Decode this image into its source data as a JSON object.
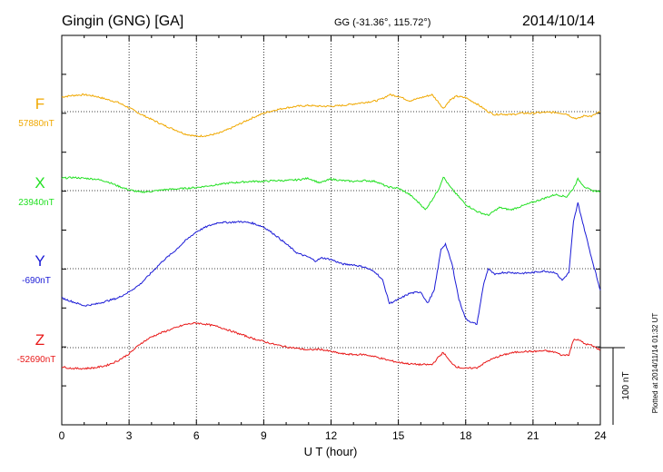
{
  "header": {
    "station": "Gingin (GNG)  [GA]",
    "coords": "GG (-31.36°, 115.72°)",
    "date": "2014/10/14"
  },
  "side_note": "Plotted at 2014/11/14 01:32 UT",
  "scale_label": "100 nT",
  "chart_data": {
    "type": "line",
    "title": "Gingin (GNG)  [GA]",
    "xlabel": "U T (hour)",
    "ylabel": "",
    "xlim": [
      0,
      24
    ],
    "xticks": [
      0,
      3,
      6,
      9,
      12,
      15,
      18,
      21,
      24
    ],
    "grid": true,
    "scale_nT": 100,
    "series": [
      {
        "name": "F",
        "baseline_label": "57880nT",
        "color": "#f0a800",
        "x": [
          0,
          0.5,
          1,
          1.5,
          2,
          2.5,
          3,
          3.5,
          4,
          4.5,
          5,
          5.5,
          6,
          6.5,
          7,
          7.5,
          8,
          8.5,
          9,
          9.5,
          10,
          10.5,
          11,
          11.5,
          12,
          12.5,
          13,
          13.5,
          14,
          14.3,
          14.6,
          15,
          15.5,
          16,
          16.5,
          16.8,
          17,
          17.3,
          17.6,
          18,
          18.5,
          19,
          19.3,
          19.6,
          20,
          20.5,
          21,
          21.5,
          22,
          22.5,
          22.8,
          23,
          23.3,
          23.6,
          24
        ],
        "y": [
          19,
          21,
          22,
          20,
          16,
          12,
          5,
          -3,
          -10,
          -17,
          -23,
          -29,
          -32,
          -31,
          -28,
          -22,
          -15,
          -8,
          -2,
          2,
          5,
          7,
          8,
          7,
          7,
          8,
          10,
          12,
          14,
          17,
          22,
          20,
          14,
          18,
          22,
          12,
          4,
          15,
          20,
          18,
          10,
          0,
          -4,
          -3,
          -4,
          -2,
          -2,
          -1,
          -1,
          -3,
          -8,
          -9,
          -5,
          -6,
          0
        ]
      },
      {
        "name": "X",
        "baseline_label": "23940nT",
        "color": "#22e022",
        "x": [
          0,
          0.5,
          1,
          1.5,
          2,
          2.5,
          3,
          3.5,
          4,
          4.5,
          5,
          5.5,
          6,
          6.5,
          7,
          7.5,
          8,
          8.5,
          9,
          9.5,
          10,
          10.5,
          11,
          11.5,
          12,
          12.5,
          13,
          13.5,
          14,
          14.5,
          15,
          15.5,
          16,
          16.2,
          16.5,
          16.8,
          17,
          17.3,
          17.6,
          18,
          18.5,
          19,
          19.5,
          20,
          20.5,
          21,
          21.5,
          22,
          22.5,
          22.8,
          23,
          23.3,
          23.6,
          24
        ],
        "y": [
          16,
          17,
          16,
          15,
          12,
          6,
          1,
          -2,
          -1,
          1,
          2,
          3,
          4,
          6,
          8,
          10,
          11,
          12,
          12,
          13,
          13,
          14,
          16,
          10,
          15,
          13,
          12,
          13,
          12,
          5,
          3,
          -5,
          -18,
          -25,
          -12,
          2,
          18,
          5,
          -5,
          -18,
          -27,
          -32,
          -22,
          -25,
          -20,
          -15,
          -10,
          -5,
          -8,
          3,
          15,
          5,
          0,
          -1
        ]
      },
      {
        "name": "Y",
        "baseline_label": "-690nT",
        "color": "#1a1ad6",
        "x": [
          0,
          0.5,
          1,
          1.5,
          2,
          2.5,
          3,
          3.5,
          4,
          4.5,
          5,
          5.5,
          6,
          6.5,
          7,
          7.5,
          8,
          8.5,
          9,
          9.5,
          10,
          10.5,
          11,
          11.3,
          11.6,
          12,
          12.5,
          13,
          13.5,
          14,
          14.3,
          14.6,
          15,
          15.5,
          16,
          16.3,
          16.6,
          16.9,
          17.1,
          17.4,
          17.7,
          18,
          18.3,
          18.5,
          18.8,
          19,
          19.3,
          19.6,
          20,
          20.5,
          21,
          21.5,
          22,
          22.3,
          22.6,
          22.8,
          23,
          23.3,
          23.6,
          24
        ],
        "y": [
          -38,
          -43,
          -48,
          -46,
          -42,
          -38,
          -30,
          -20,
          -5,
          10,
          22,
          36,
          48,
          55,
          60,
          60,
          61,
          59,
          54,
          44,
          32,
          20,
          15,
          10,
          14,
          12,
          6,
          5,
          2,
          -5,
          -15,
          -45,
          -40,
          -32,
          -30,
          -45,
          -28,
          25,
          32,
          5,
          -40,
          -65,
          -70,
          -72,
          -20,
          0,
          -8,
          -5,
          -5,
          -6,
          -5,
          -3,
          -5,
          -15,
          -5,
          60,
          85,
          50,
          15,
          -28
        ]
      },
      {
        "name": "Z",
        "baseline_label": "-52690nT",
        "color": "#e81818",
        "x": [
          0,
          0.5,
          1,
          1.5,
          2,
          2.5,
          3,
          3.5,
          4,
          4.5,
          5,
          5.5,
          6,
          6.5,
          7,
          7.5,
          8,
          8.5,
          9,
          9.5,
          10,
          10.5,
          11,
          11.5,
          12,
          12.5,
          13,
          13.5,
          14,
          14.5,
          15,
          15.5,
          16,
          16.5,
          16.8,
          17,
          17.3,
          17.6,
          18,
          18.5,
          19,
          19.5,
          20,
          20.5,
          21,
          21.5,
          22,
          22.3,
          22.6,
          22.8,
          23,
          23.3,
          23.6,
          24
        ],
        "y": [
          -25,
          -27,
          -27,
          -26,
          -23,
          -17,
          -8,
          5,
          14,
          20,
          25,
          30,
          32,
          30,
          27,
          22,
          17,
          12,
          8,
          4,
          1,
          -1,
          -3,
          -2,
          -5,
          -8,
          -9,
          -9,
          -12,
          -16,
          -19,
          -21,
          -22,
          -22,
          -12,
          -6,
          -18,
          -25,
          -27,
          -26,
          -17,
          -11,
          -7,
          -5,
          -5,
          -4,
          -6,
          -10,
          -9,
          10,
          11,
          5,
          3,
          -3
        ]
      }
    ]
  }
}
